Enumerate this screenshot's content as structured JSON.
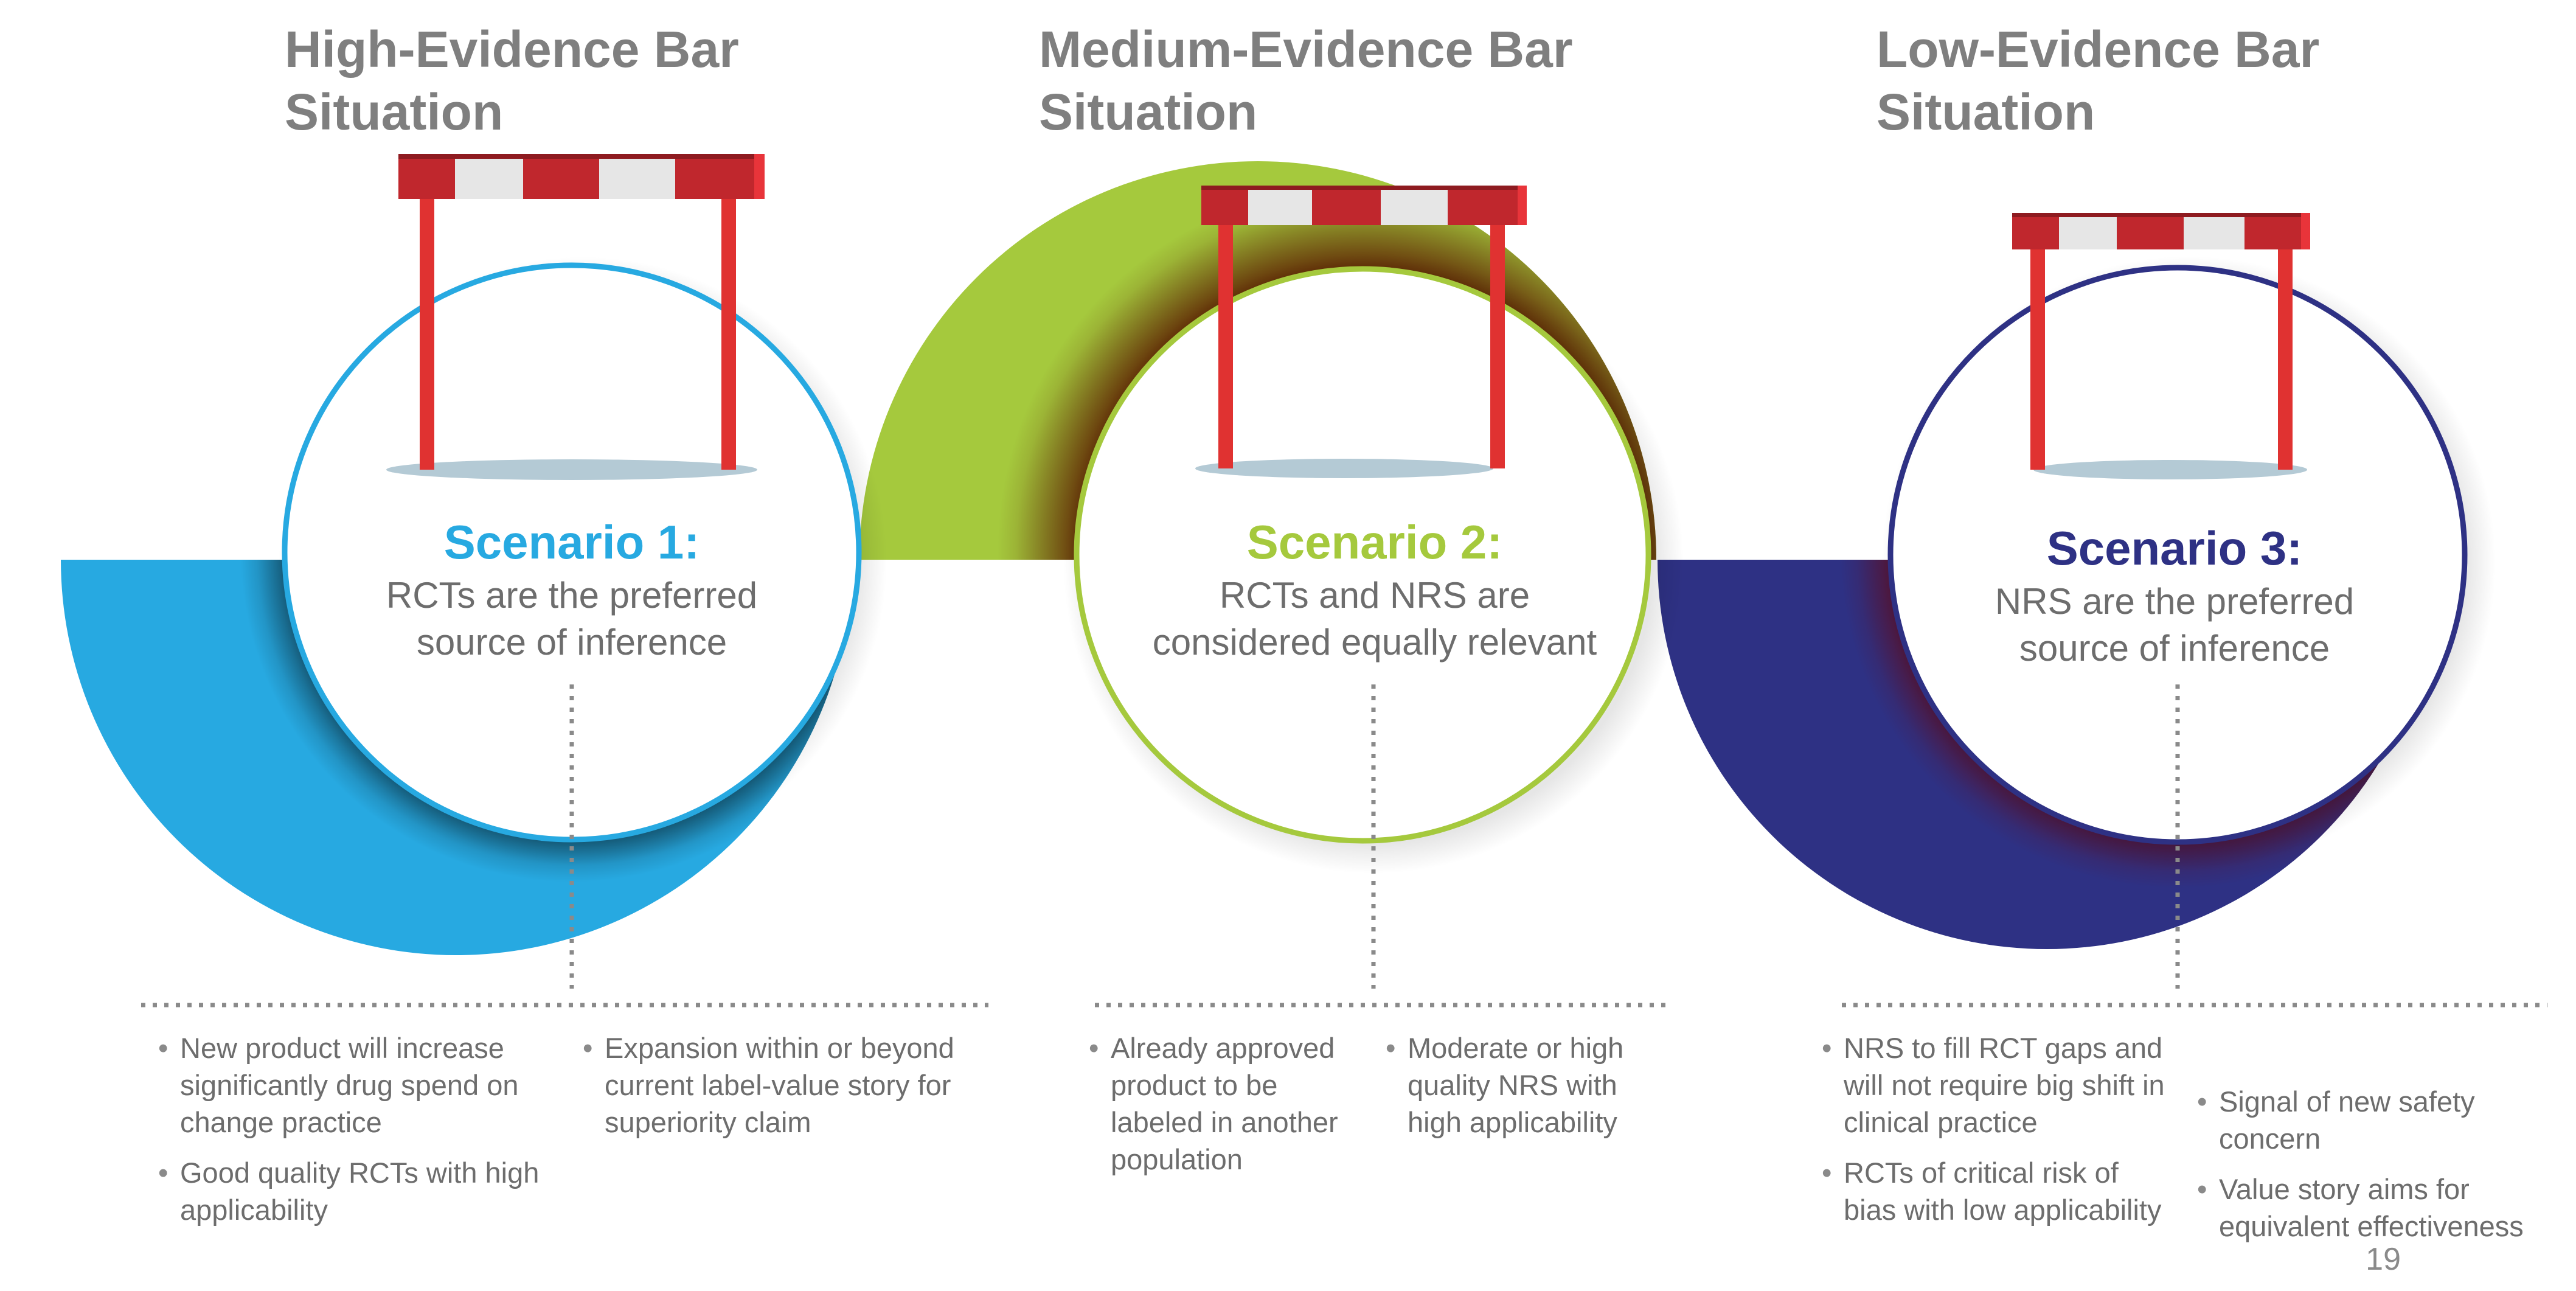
{
  "slide": {
    "page_number": "19"
  },
  "columns": [
    {
      "heading_line1": "High-Evidence Bar",
      "heading_line2": "Situation",
      "scenario_title": "Scenario 1:",
      "scenario_desc_line1": "RCTs are the preferred",
      "scenario_desc_line2": "source of inference",
      "accent_color": "#27a9e1",
      "bullets_left": [
        "New product will increase significantly drug spend on change practice",
        "Good quality RCTs with high applicability"
      ],
      "bullets_right": [
        "Expansion within or beyond current label-value story for superiority claim"
      ]
    },
    {
      "heading_line1": "Medium-Evidence Bar",
      "heading_line2": "Situation",
      "scenario_title": "Scenario 2:",
      "scenario_desc_line1": "RCTs and NRS are",
      "scenario_desc_line2": "considered equally relevant",
      "accent_color": "#a5c93d",
      "bullets_left": [
        "Already approved product to be labeled in another population"
      ],
      "bullets_right": [
        "Moderate or high quality NRS with high applicability"
      ]
    },
    {
      "heading_line1": "Low-Evidence Bar",
      "heading_line2": "Situation",
      "scenario_title": "Scenario 3:",
      "scenario_desc_line1": "NRS are the preferred",
      "scenario_desc_line2": "source of inference",
      "accent_color": "#2e3184",
      "bullets_left": [
        "NRS to fill RCT gaps and will not require big shift in clinical practice",
        "RCTs of critical risk of bias with low applicability"
      ],
      "bullets_right": [
        "Signal of new safety concern",
        "Value story aims for equivalent effectiveness"
      ]
    }
  ]
}
